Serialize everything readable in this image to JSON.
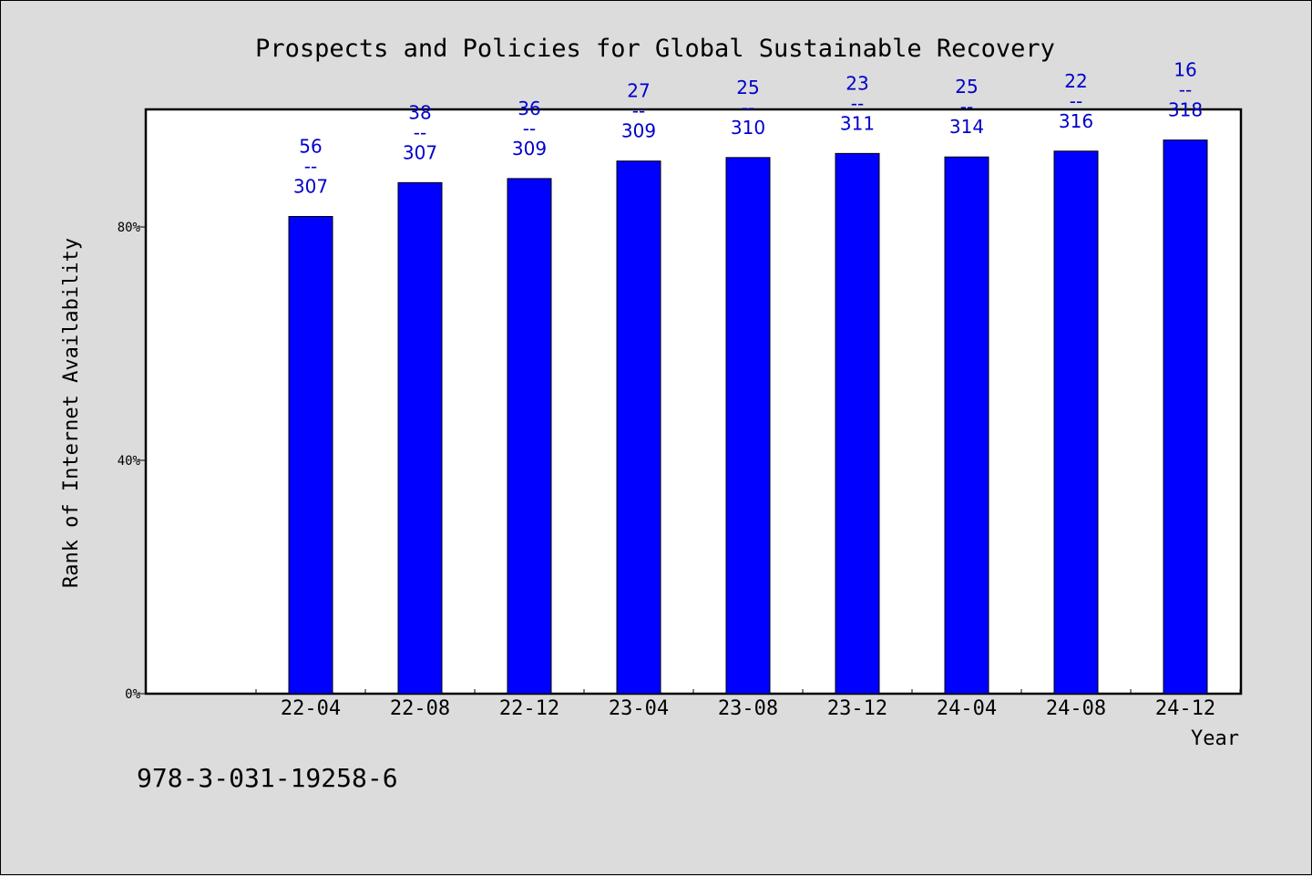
{
  "chart_data": {
    "type": "bar",
    "title": "Prospects and Policies for Global Sustainable Recovery",
    "xlabel": "Year",
    "ylabel": "Rank of Internet Availability",
    "categories": [
      "22-04",
      "22-08",
      "22-12",
      "23-04",
      "23-08",
      "23-12",
      "24-04",
      "24-08",
      "24-12"
    ],
    "values": [
      81.8,
      87.6,
      88.3,
      91.3,
      91.9,
      92.6,
      92.0,
      93.0,
      94.9
    ],
    "ranks": [
      56,
      38,
      36,
      27,
      25,
      23,
      25,
      22,
      16
    ],
    "totals": [
      307,
      307,
      309,
      309,
      310,
      311,
      314,
      316,
      318
    ],
    "label_separator": "--",
    "y_ticks": [
      "0%",
      "40%",
      "80%"
    ],
    "ylim": [
      0,
      100
    ],
    "grid": false,
    "colors": {
      "bar": "#0000ff",
      "label": "#0000cc",
      "background": "#dcdcdc",
      "plot": "#ffffff"
    }
  },
  "footnote": "978-3-031-19258-6"
}
